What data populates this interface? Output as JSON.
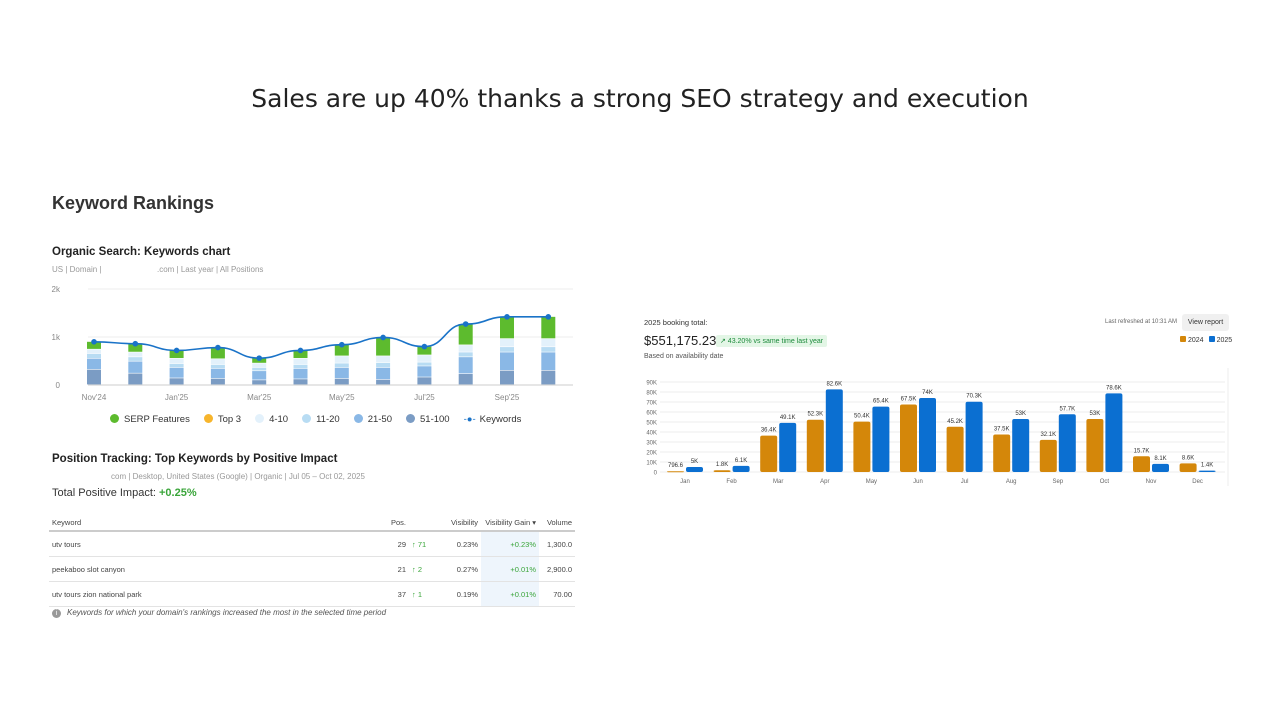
{
  "slide_title": "Sales are up 40% thanks a strong SEO strategy and execution",
  "keyword_rankings": {
    "title": "Keyword Rankings",
    "organic": {
      "title": "Organic Search: Keywords chart",
      "subtitle_left": "US | Domain |",
      "subtitle_right": ".com | Last year | All Positions"
    },
    "position_tracking": {
      "title": "Position Tracking: Top Keywords by Positive Impact",
      "subtitle": "com | Desktop, United States (Google) | Organic | Jul 05 – Oct 02, 2025",
      "total_label": "Total Positive Impact:",
      "total_value": "+0.25%",
      "columns": [
        "Keyword",
        "Pos.",
        "Visibility",
        "Visibility Gain",
        "Volume"
      ],
      "rows": [
        {
          "keyword": "utv tours",
          "pos": "29",
          "change": "71",
          "visibility": "0.23%",
          "gain": "+0.23%",
          "volume": "1,300.0"
        },
        {
          "keyword": "peekaboo slot canyon",
          "pos": "21",
          "change": "2",
          "visibility": "0.27%",
          "gain": "+0.01%",
          "volume": "2,900.0"
        },
        {
          "keyword": "utv tours zion national park",
          "pos": "37",
          "change": "1",
          "visibility": "0.19%",
          "gain": "+0.01%",
          "volume": "70.00"
        }
      ],
      "footnote": "Keywords for which your domain's rankings increased the most in the selected time period"
    }
  },
  "booking": {
    "label": "2025 booking total:",
    "total": "$551,175.23",
    "badge": "↗ 43.20% vs same time last year",
    "note": "Based on availability date",
    "refreshed": "Last refreshed at 10:31 AM",
    "view_report": "View report"
  },
  "chart_data": [
    {
      "type": "bar",
      "stacked": true,
      "categories": [
        "Nov'24",
        "Dec'24",
        "Jan'25",
        "Feb'25",
        "Mar'25",
        "Apr'25",
        "May'25",
        "Jun'25",
        "Jul'25",
        "Aug'25",
        "Sep'25",
        "Oct'25"
      ],
      "tick_labels": [
        "Nov'24",
        "Jan'25",
        "Mar'25",
        "May'25",
        "Jul'25",
        "Sep'25"
      ],
      "y_ticks": [
        "0",
        "1k",
        "2k"
      ],
      "ylim": [
        0,
        2000
      ],
      "grid": true,
      "legend": "bottom",
      "series": [
        {
          "name": "51-100",
          "color": "#7b9cc4",
          "values": [
            320,
            240,
            140,
            130,
            100,
            120,
            130,
            110,
            160,
            230,
            300,
            300
          ]
        },
        {
          "name": "21-50",
          "color": "#8ab8e6",
          "values": [
            230,
            250,
            220,
            210,
            190,
            220,
            230,
            250,
            230,
            350,
            380,
            380
          ]
        },
        {
          "name": "11-20",
          "color": "#b8dcf3",
          "values": [
            100,
            90,
            80,
            80,
            70,
            80,
            90,
            100,
            80,
            100,
            110,
            110
          ]
        },
        {
          "name": "4-10",
          "color": "#e3f1fb",
          "values": [
            90,
            100,
            110,
            120,
            90,
            130,
            150,
            140,
            150,
            150,
            170,
            170
          ]
        },
        {
          "name": "Top 3",
          "color": "#f7b52c",
          "values": [
            0,
            0,
            0,
            0,
            0,
            0,
            0,
            0,
            0,
            0,
            0,
            0
          ]
        },
        {
          "name": "SERP Features",
          "color": "#5dbb2e",
          "values": [
            160,
            180,
            170,
            240,
            110,
            170,
            240,
            390,
            180,
            440,
            460,
            460
          ]
        }
      ],
      "line": {
        "name": "Keywords",
        "color": "#1a73c8",
        "values": [
          900,
          860,
          720,
          780,
          560,
          720,
          840,
          990,
          800,
          1270,
          1420,
          1420
        ]
      },
      "legend_order": [
        "SERP Features",
        "Top 3",
        "4-10",
        "11-20",
        "21-50",
        "51-100",
        "Keywords"
      ]
    },
    {
      "type": "bar",
      "categories": [
        "Jan",
        "Feb",
        "Mar",
        "Apr",
        "May",
        "Jun",
        "Jul",
        "Aug",
        "Sep",
        "Oct",
        "Nov",
        "Dec"
      ],
      "y_ticks": [
        "0",
        "10K",
        "20K",
        "30K",
        "40K",
        "50K",
        "60K",
        "70K",
        "80K",
        "90K"
      ],
      "ylim": [
        0,
        90000
      ],
      "grid": true,
      "legend": "top-right",
      "series": [
        {
          "name": "2024",
          "color": "#d4870a",
          "values": [
            796.6,
            1800,
            36400,
            52300,
            50400,
            67500,
            45200,
            37500,
            32100,
            53000,
            15700,
            8600
          ],
          "labels": [
            "796.6",
            "1.8K",
            "36.4K",
            "52.3K",
            "50.4K",
            "67.5K",
            "45.2K",
            "37.5K",
            "32.1K",
            "53K",
            "15.7K",
            "8.6K"
          ]
        },
        {
          "name": "2025",
          "color": "#0b6fd1",
          "values": [
            5000,
            6100,
            49100,
            82600,
            65400,
            74000,
            70300,
            53000,
            57700,
            78600,
            8100,
            1400
          ],
          "labels": [
            "5K",
            "6.1K",
            "49.1K",
            "82.6K",
            "65.4K",
            "74K",
            "70.3K",
            "53K",
            "57.7K",
            "78.6K",
            "8.1K",
            "1.4K"
          ]
        }
      ]
    }
  ]
}
